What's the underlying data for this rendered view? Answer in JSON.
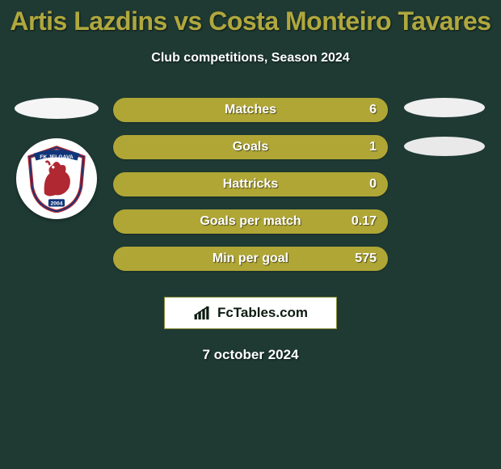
{
  "colors": {
    "background": "#1f3a33",
    "title": "#b0a83e",
    "text": "#ffffff",
    "bar_track": "#afa636",
    "bar_fill": "#5b7a39",
    "ellipse_left": "#f5f5f5",
    "ellipse_right_1": "#efefef",
    "ellipse_right_2": "#e9e9e9",
    "brand_bg": "#ffffff",
    "brand_border": "#8a8f3a",
    "brand_text": "#0d1b12",
    "badge_border": "#b02832",
    "badge_ribbon": "#10357a"
  },
  "title": "Artis Lazdins vs Costa Monteiro Tavares",
  "subtitle": "Club competitions, Season 2024",
  "club_name": "FK JELGAVA",
  "club_year": "2004",
  "stats": [
    {
      "label": "Matches",
      "value": "6",
      "fill_pct": 0
    },
    {
      "label": "Goals",
      "value": "1",
      "fill_pct": 0
    },
    {
      "label": "Hattricks",
      "value": "0",
      "fill_pct": 0
    },
    {
      "label": "Goals per match",
      "value": "0.17",
      "fill_pct": 0
    },
    {
      "label": "Min per goal",
      "value": "575",
      "fill_pct": 0
    }
  ],
  "brand": "FcTables.com",
  "date": "7 october 2024"
}
